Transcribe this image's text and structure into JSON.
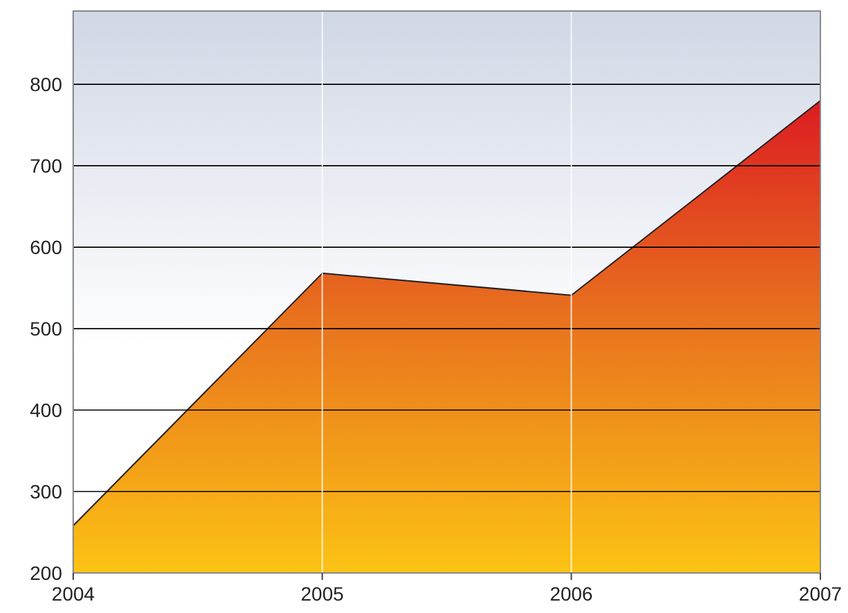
{
  "chart_data": {
    "type": "area",
    "x": [
      2004,
      2005,
      2006,
      2007
    ],
    "series": [
      {
        "color": "#e8701e",
        "values": [
          258,
          568,
          541,
          780
        ]
      }
    ],
    "xlim": [
      2004,
      2007
    ],
    "xticks": [
      2004,
      2005,
      2006,
      2007
    ],
    "ylim": [
      200,
      890
    ],
    "yticks": [
      200,
      300,
      400,
      500,
      600,
      700,
      800
    ],
    "grid": true
  }
}
